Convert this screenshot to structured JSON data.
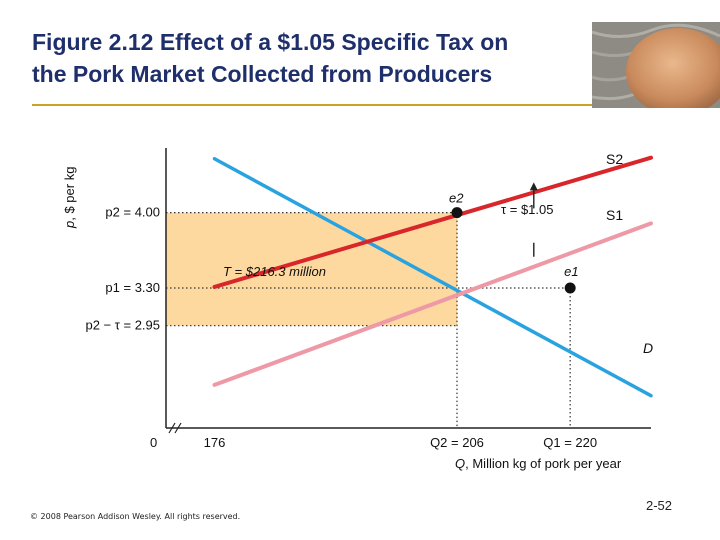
{
  "slide": {
    "title_line1": "Figure 2.12  Effect of a $1.05 Specific Tax on",
    "title_line2": "the Pork Market Collected from Producers",
    "copyright": "© 2008 Pearson Addison Wesley. All rights reserved.",
    "page_number": "2-52"
  },
  "colors": {
    "title": "#1f2f6b",
    "demand": "#29a3e0",
    "supply_before": "#ee9aa6",
    "supply_after": "#d9262a",
    "tax_area": "#fdd9a0",
    "rule": "#c9a227"
  },
  "chart_data": {
    "type": "line",
    "xlabel_var": "Q",
    "xlabel_text": ", Million kg of pork per year",
    "ylabel_var": "p",
    "ylabel_text": ", $ per kg",
    "xlim": [
      170,
      230
    ],
    "ylim": [
      2.0,
      4.6
    ],
    "x_ticks": [
      {
        "value": 176,
        "label": "176"
      },
      {
        "value": 206,
        "label": "Q2 = 206"
      },
      {
        "value": 220,
        "label": "Q1 = 220"
      }
    ],
    "x_origin_label": "0",
    "y_ticks": [
      {
        "value": 4.0,
        "label": "p2 = 4.00"
      },
      {
        "value": 3.3,
        "label": "p1 = 3.30"
      },
      {
        "value": 2.95,
        "label": "p2 − τ = 2.95"
      }
    ],
    "series": [
      {
        "name": "D",
        "x": [
          176,
          230
        ],
        "y": [
          4.5,
          2.3
        ]
      },
      {
        "name": "S1",
        "x": [
          176,
          230
        ],
        "y": [
          2.4,
          3.9
        ]
      },
      {
        "name": "S2",
        "x": [
          176,
          230
        ],
        "y": [
          3.31,
          4.51
        ]
      }
    ],
    "points": [
      {
        "label": "e2",
        "x": 206,
        "y": 4.0
      },
      {
        "label": "e1",
        "x": 220,
        "y": 3.3
      }
    ],
    "annotations": {
      "tax_label": "T = $216.3 million",
      "tau_label": "τ = $1.05"
    }
  }
}
